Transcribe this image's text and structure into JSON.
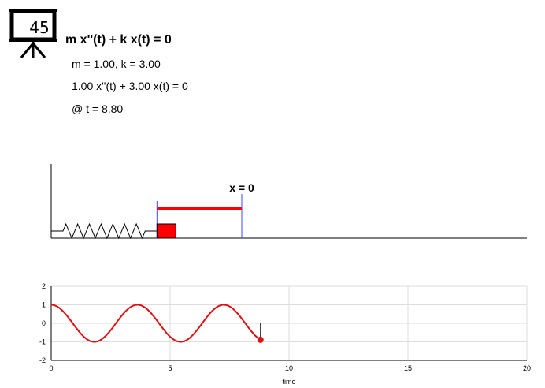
{
  "badge": {
    "number": "45",
    "icon": "presentation-board-icon"
  },
  "equation": {
    "title": "m x''(t) + k x(t) = 0",
    "params": "m = 1.00, k = 3.00",
    "instance": "1.00 x''(t) + 3.00 x(t) = 0",
    "time": "@ t = 8.80"
  },
  "spring_view": {
    "label": "x = 0",
    "displacement": -0.89,
    "mass_color": "#ff0000",
    "arrow_color": "#ff0000",
    "marker_color": "#4444ff"
  },
  "chart_data": {
    "type": "line",
    "title": "",
    "xlabel": "time",
    "ylabel": "",
    "xlim": [
      0,
      20
    ],
    "ylim": [
      -2,
      2
    ],
    "x_ticks": [
      0,
      5,
      10,
      15,
      20
    ],
    "y_ticks": [
      -2,
      -1,
      0,
      1,
      2
    ],
    "grid": true,
    "omega": 1.732,
    "t_end": 8.8,
    "current": {
      "t": 8.8,
      "x": -0.89
    },
    "color": "#dd1111"
  }
}
